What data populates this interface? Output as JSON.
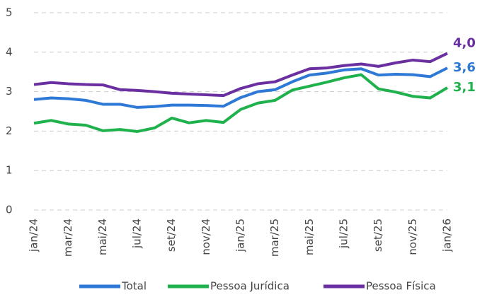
{
  "chart_data": {
    "type": "line",
    "categories": [
      "jan/24",
      null,
      "mar/24",
      null,
      "mai/24",
      null,
      "jul/24",
      null,
      "set/24",
      null,
      "nov/24",
      null,
      "jan/25",
      null,
      "mar/25",
      null,
      "mai/25",
      null,
      "jul/25",
      null,
      "set/25",
      null,
      "nov/25",
      null,
      "jan/26"
    ],
    "series": [
      {
        "name": "Total",
        "color": "#2e78d6",
        "values": [
          2.8,
          2.84,
          2.82,
          2.78,
          2.68,
          2.68,
          2.6,
          2.62,
          2.66,
          2.66,
          2.65,
          2.63,
          2.85,
          3.0,
          3.05,
          3.25,
          3.42,
          3.47,
          3.55,
          3.58,
          3.42,
          3.44,
          3.43,
          3.38,
          3.6
        ],
        "value_labels": [
          null,
          null,
          null,
          null,
          null,
          null,
          null,
          null,
          null,
          null,
          null,
          null,
          null,
          null,
          null,
          null,
          null,
          null,
          null,
          null,
          null,
          null,
          null,
          null,
          "3,6"
        ]
      },
      {
        "name": "Pessoa Jurídica",
        "color": "#1fb14c",
        "values": [
          2.2,
          2.27,
          2.18,
          2.15,
          2.01,
          2.04,
          1.99,
          2.08,
          2.33,
          2.21,
          2.27,
          2.22,
          2.55,
          2.71,
          2.78,
          3.04,
          3.14,
          3.24,
          3.35,
          3.43,
          3.07,
          2.99,
          2.88,
          2.84,
          3.1
        ],
        "value_labels": [
          null,
          null,
          null,
          null,
          null,
          null,
          null,
          null,
          null,
          null,
          null,
          null,
          null,
          null,
          null,
          null,
          null,
          null,
          null,
          null,
          null,
          null,
          null,
          null,
          "3,1"
        ]
      },
      {
        "name": "Pessoa Física",
        "color": "#6a2fa0",
        "values": [
          3.18,
          3.23,
          3.2,
          3.18,
          3.17,
          3.05,
          3.03,
          3.0,
          2.96,
          2.94,
          2.92,
          2.9,
          3.08,
          3.2,
          3.25,
          3.42,
          3.58,
          3.6,
          3.66,
          3.7,
          3.64,
          3.73,
          3.8,
          3.76,
          3.97
        ],
        "value_labels": [
          null,
          null,
          null,
          null,
          null,
          null,
          null,
          null,
          null,
          null,
          null,
          null,
          null,
          null,
          null,
          null,
          null,
          null,
          null,
          null,
          null,
          null,
          null,
          null,
          "4,0"
        ]
      }
    ],
    "ylim": [
      0,
      5
    ],
    "yticks": [
      0,
      1,
      2,
      3,
      4,
      5
    ],
    "grid": true,
    "legend": "bottom"
  }
}
